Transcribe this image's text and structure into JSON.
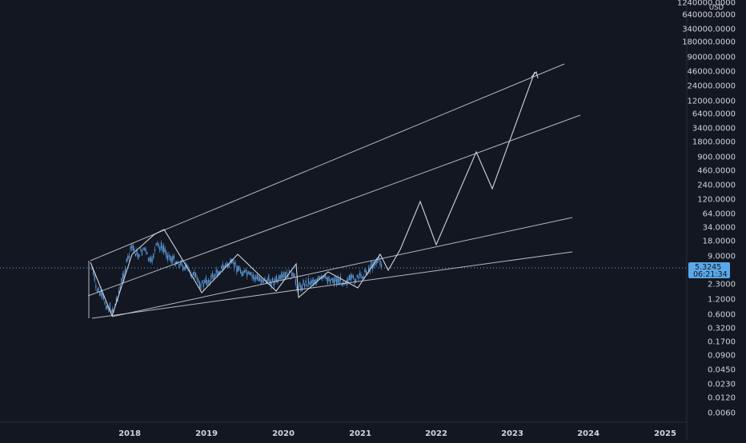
{
  "chart_data": {
    "type": "candlestick",
    "y_scale": "log",
    "grid": false,
    "y_axis": {
      "unit": "USD",
      "ticks": [
        "1240000.0000",
        "640000.0000",
        "340000.0000",
        "180000.0000",
        "90000.0000",
        "46000.0000",
        "24000.0000",
        "12000.0000",
        "6400.0000",
        "3400.0000",
        "1800.0000",
        "900.0000",
        "460.0000",
        "240.0000",
        "120.0000",
        "64.0000",
        "34.0000",
        "18.0000",
        "9.0000",
        "2.3000",
        "1.2000",
        "0.6000",
        "0.3200",
        "0.1700",
        "0.0900",
        "0.0450",
        "0.0230",
        "0.0120",
        "0.0060"
      ]
    },
    "x_axis": {
      "ticks": [
        "2018",
        "2019",
        "2020",
        "2021",
        "2022",
        "2023",
        "2024",
        "2025"
      ]
    },
    "current_price": {
      "label": "5.3245",
      "countdown": "06:21:34"
    },
    "colors": {
      "background": "#131722",
      "candles": "#5b9ad9",
      "drawings": "#d1d4dc",
      "price_label": "#5aa8e8",
      "axis_text": "#d1d4dc"
    }
  }
}
